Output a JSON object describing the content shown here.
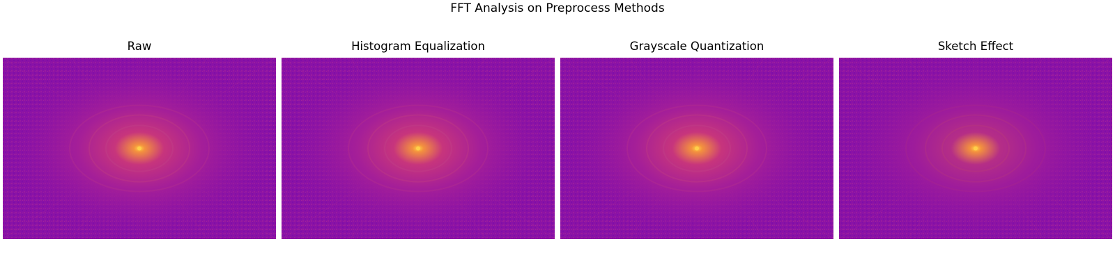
{
  "figure": {
    "title": "FFT Analysis on Preprocess Methods"
  },
  "panels": [
    {
      "title": "Raw",
      "image": "fft-magnitude-spectrum"
    },
    {
      "title": "Histogram Equalization",
      "image": "fft-magnitude-spectrum"
    },
    {
      "title": "Grayscale Quantization",
      "image": "fft-magnitude-spectrum"
    },
    {
      "title": "Sketch Effect",
      "image": "fft-magnitude-spectrum"
    }
  ],
  "colors": {
    "background_magenta": "#8a12a6",
    "ring_mid": "#c2307e",
    "center_hot": "#f6a33c"
  }
}
